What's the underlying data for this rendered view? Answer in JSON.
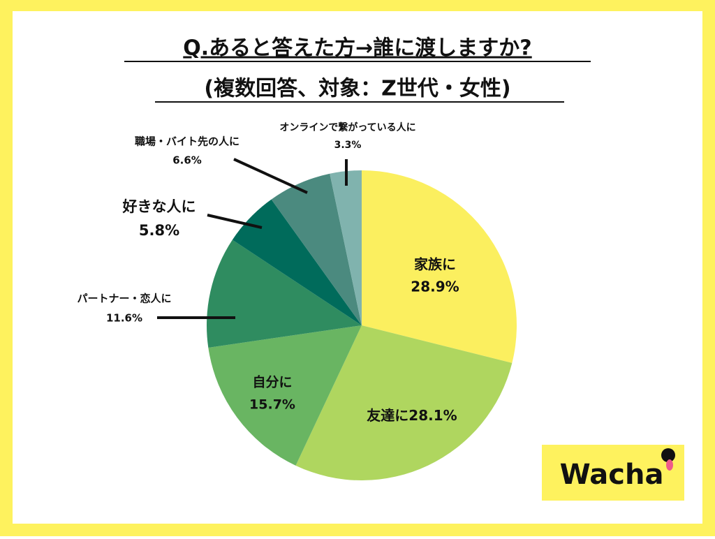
{
  "chart_data": {
    "type": "pie",
    "title": "Q.あると答えた方→誰に渡しますか?",
    "subtitle": "(複数回答、対象：Z世代・女性)",
    "categories": [
      "家族に",
      "友達に",
      "自分に",
      "パートナー・恋人に",
      "好きな人に",
      "職場・バイト先の人に",
      "オンラインで繋がっている人に"
    ],
    "values": [
      28.9,
      28.1,
      15.7,
      11.6,
      5.8,
      6.6,
      3.3
    ],
    "value_labels": [
      "28.9%",
      "28.1%",
      "15.7%",
      "11.6%",
      "5.8%",
      "6.6%",
      "3.3%"
    ],
    "colors": [
      "#fbef5f",
      "#afd65f",
      "#69b562",
      "#2f8c60",
      "#006b5b",
      "#4b8a7f",
      "#80b3ae"
    ]
  },
  "logo": "Wacha"
}
